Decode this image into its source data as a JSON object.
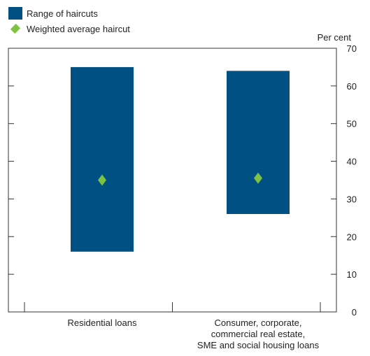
{
  "chart_data": {
    "type": "bar",
    "subtype": "range-with-marker",
    "categories": [
      [
        "Residential loans"
      ],
      [
        "Consumer, corporate,",
        "commercial real estate,",
        "SME and social housing loans"
      ]
    ],
    "series": [
      {
        "name": "Range of haircuts",
        "low": [
          16,
          26
        ],
        "high": [
          65,
          64
        ],
        "color": "#005083"
      },
      {
        "name": "Weighted average haircut",
        "values": [
          35,
          35.5
        ],
        "color": "#7dc242",
        "marker": "diamond"
      }
    ],
    "y_unit": "Per cent",
    "ylim": [
      0,
      70
    ],
    "yticks": [
      0,
      10,
      20,
      30,
      40,
      50,
      60,
      70
    ],
    "grid": false,
    "legend_position": "top-left"
  }
}
